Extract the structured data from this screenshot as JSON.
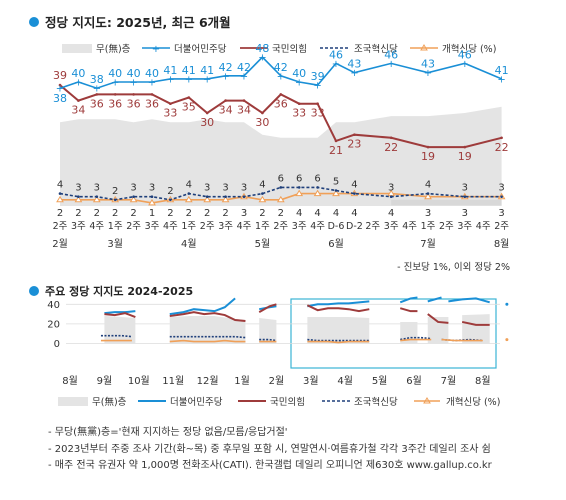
{
  "colors": {
    "dem": "#1a8fd6",
    "ppp": "#9e3b3b",
    "rebuild": "#1f3f7a",
    "reform": "#f0a058",
    "none_fill": "#e4e4e4",
    "frame": "#3bb4d4",
    "bullet": "#1a8fd6"
  },
  "legend": {
    "none": "무(無)층",
    "dem": "더불어민주당",
    "ppp": "국민의힘",
    "rebuild": "조국혁신당",
    "reform": "개혁신당 (%)"
  },
  "legend2": {
    "none": "무(無)층",
    "dem": "더불어민주당",
    "ppp": "국민의힘",
    "rebuild": "조국혁신당",
    "reform": "개혁신당 (%)"
  },
  "chart_data": [
    {
      "type": "line",
      "title": "정당 지지도: 2025년, 최근 6개월",
      "x_week_labels": [
        "2주",
        "3주",
        "4주",
        "1주",
        "2주",
        "3주",
        "4주",
        "1주",
        "2주",
        "3주",
        "4주",
        "1주",
        "2주",
        "3주",
        "4주",
        "D-6",
        "D-2",
        "2주",
        "3주",
        "4주",
        "1주",
        "2주",
        "3주",
        "4주",
        "2주"
      ],
      "month_labels": [
        {
          "label": "2월",
          "at_index": 0
        },
        {
          "label": "3월",
          "at_index": 3
        },
        {
          "label": "4월",
          "at_index": 7
        },
        {
          "label": "5월",
          "at_index": 11
        },
        {
          "label": "6월",
          "at_index": 15
        },
        {
          "label": "7월",
          "at_index": 20
        },
        {
          "label": "8월",
          "at_index": 24
        }
      ],
      "series": [
        {
          "name": "더불어민주당",
          "key": "dem",
          "values": [
            38,
            40,
            38,
            40,
            40,
            40,
            41,
            41,
            41,
            42,
            42,
            48,
            42,
            40,
            39,
            46,
            43,
            46,
            43,
            46,
            41
          ]
        },
        {
          "name": "국민의힘",
          "key": "ppp",
          "values": [
            39,
            34,
            36,
            36,
            36,
            36,
            33,
            35,
            30,
            34,
            34,
            30,
            36,
            33,
            33,
            21,
            23,
            22,
            19,
            19,
            22
          ]
        },
        {
          "name": "조국혁신당",
          "key": "rebuild",
          "values": [
            4,
            3,
            3,
            2,
            3,
            3,
            2,
            4,
            3,
            3,
            3,
            4,
            6,
            6,
            6,
            5,
            4,
            3,
            4,
            3,
            3
          ]
        },
        {
          "name": "개혁신당 (%)",
          "key": "reform",
          "values": [
            2,
            2,
            2,
            2,
            2,
            1,
            2,
            2,
            2,
            2,
            3,
            2,
            2,
            4,
            4,
            4,
            4,
            4,
            3,
            3,
            3
          ]
        },
        {
          "name": "무(無)층",
          "key": "none",
          "type": "area",
          "values": [
            27,
            28,
            28,
            28,
            27,
            28,
            27,
            27,
            28,
            27,
            27,
            23,
            22,
            22,
            22,
            27,
            27,
            29,
            29,
            30,
            32
          ]
        }
      ],
      "point_week_index": [
        0,
        1,
        2,
        3,
        4,
        5,
        6,
        7,
        8,
        9,
        10,
        11,
        12,
        13,
        14,
        15,
        16,
        18,
        20,
        22,
        24
      ],
      "ylim": [
        0,
        55
      ],
      "footnote": "- 진보당 1%, 이외 정당 2%"
    },
    {
      "type": "line",
      "title": "주요 정당 지지도 2024-2025",
      "x_month_labels": [
        "8월",
        "9월",
        "10월",
        "11월",
        "12월",
        "1월",
        "2월",
        "3월",
        "4월",
        "5월",
        "6월",
        "7월",
        "8월"
      ],
      "y_ticks": [
        0,
        20,
        40
      ],
      "ylim": [
        0,
        50
      ],
      "highlight_months": [
        "3월",
        "8월"
      ],
      "series": [
        {
          "name": "더불어민주당",
          "key": "dem",
          "segments": [
            [
              [
                1.0,
                31
              ],
              [
                1.3,
                32
              ],
              [
                1.6,
                32
              ],
              [
                1.9,
                33
              ]
            ],
            [
              [
                2.9,
                30
              ],
              [
                3.3,
                32
              ],
              [
                3.6,
                35
              ],
              [
                3.9,
                34
              ],
              [
                4.2,
                33
              ],
              [
                4.5,
                37
              ],
              [
                4.8,
                46
              ]
            ],
            [
              [
                5.5,
                35
              ],
              [
                5.8,
                37
              ],
              [
                6.0,
                38
              ]
            ],
            [
              [
                6.9,
                38
              ],
              [
                7.2,
                40
              ],
              [
                7.5,
                40
              ],
              [
                7.8,
                41
              ],
              [
                8.1,
                41
              ],
              [
                8.4,
                42
              ],
              [
                8.7,
                43
              ]
            ],
            [
              [
                9.6,
                42
              ],
              [
                9.9,
                46
              ],
              [
                10.1,
                47
              ]
            ],
            [
              [
                10.4,
                43
              ],
              [
                10.8,
                47
              ]
            ],
            [
              [
                11.0,
                43
              ],
              [
                11.4,
                45
              ],
              [
                11.8,
                46
              ],
              [
                12.2,
                42
              ]
            ],
            [
              [
                12.7,
                40
              ]
            ]
          ]
        },
        {
          "name": "국민의힘",
          "key": "ppp",
          "segments": [
            [
              [
                1.0,
                30
              ],
              [
                1.3,
                29
              ],
              [
                1.6,
                31
              ],
              [
                1.9,
                27
              ]
            ],
            [
              [
                2.9,
                28
              ],
              [
                3.3,
                30
              ],
              [
                3.6,
                32
              ],
              [
                3.9,
                30
              ],
              [
                4.2,
                31
              ],
              [
                4.5,
                29
              ],
              [
                4.8,
                24
              ],
              [
                5.1,
                23
              ]
            ],
            [
              [
                5.5,
                32
              ],
              [
                5.8,
                38
              ],
              [
                6.0,
                40
              ]
            ],
            [
              [
                6.9,
                39
              ],
              [
                7.2,
                34
              ],
              [
                7.5,
                36
              ],
              [
                7.8,
                36
              ],
              [
                8.1,
                35
              ],
              [
                8.4,
                33
              ],
              [
                8.7,
                35
              ]
            ],
            [
              [
                9.6,
                36
              ],
              [
                9.9,
                33
              ],
              [
                10.1,
                33
              ]
            ],
            [
              [
                10.4,
                30
              ],
              [
                10.7,
                22
              ],
              [
                11.0,
                21
              ]
            ],
            [
              [
                11.4,
                22
              ],
              [
                11.8,
                19
              ],
              [
                12.2,
                19
              ]
            ]
          ]
        },
        {
          "name": "조국혁신당",
          "key": "rebuild",
          "segments": [
            [
              [
                0.9,
                8
              ],
              [
                1.2,
                8
              ],
              [
                1.5,
                8
              ],
              [
                1.8,
                7
              ]
            ],
            [
              [
                2.9,
                7
              ],
              [
                3.3,
                7
              ],
              [
                3.6,
                7
              ],
              [
                3.9,
                7
              ],
              [
                4.2,
                7
              ],
              [
                4.5,
                7
              ],
              [
                4.8,
                7
              ],
              [
                5.1,
                6
              ]
            ],
            [
              [
                5.5,
                4
              ],
              [
                5.8,
                4
              ],
              [
                6.0,
                3
              ]
            ],
            [
              [
                6.9,
                4
              ],
              [
                7.2,
                3
              ],
              [
                7.5,
                3
              ],
              [
                7.8,
                3
              ],
              [
                8.1,
                3
              ],
              [
                8.4,
                3
              ],
              [
                8.7,
                3
              ]
            ],
            [
              [
                9.6,
                4
              ],
              [
                9.9,
                6
              ],
              [
                10.2,
                6
              ],
              [
                10.5,
                5
              ]
            ],
            [
              [
                10.8,
                4
              ],
              [
                11.2,
                3
              ],
              [
                11.6,
                4
              ],
              [
                12.0,
                3
              ]
            ]
          ]
        },
        {
          "name": "개혁신당 (%)",
          "key": "reform",
          "segments": [
            [
              [
                0.9,
                3
              ],
              [
                1.2,
                3
              ],
              [
                1.5,
                3
              ],
              [
                1.8,
                3
              ]
            ],
            [
              [
                2.9,
                2
              ],
              [
                3.3,
                3
              ],
              [
                3.6,
                2
              ],
              [
                3.9,
                2
              ],
              [
                4.2,
                2
              ],
              [
                4.5,
                3
              ],
              [
                4.8,
                2
              ],
              [
                5.1,
                2
              ]
            ],
            [
              [
                5.5,
                2
              ],
              [
                5.8,
                2
              ],
              [
                6.0,
                2
              ]
            ],
            [
              [
                6.9,
                2
              ],
              [
                7.2,
                2
              ],
              [
                7.5,
                2
              ],
              [
                7.8,
                1
              ],
              [
                8.1,
                2
              ],
              [
                8.4,
                2
              ],
              [
                8.7,
                2
              ]
            ],
            [
              [
                9.6,
                3
              ],
              [
                9.9,
                4
              ],
              [
                10.2,
                4
              ],
              [
                10.5,
                4
              ]
            ],
            [
              [
                10.8,
                4
              ],
              [
                11.2,
                3
              ],
              [
                11.6,
                3
              ],
              [
                12.0,
                3
              ]
            ],
            [
              [
                12.7,
                4
              ]
            ]
          ]
        },
        {
          "name": "무(無)층",
          "key": "none",
          "type": "area",
          "segments": [
            [
              [
                1.0,
                28
              ],
              [
                1.5,
                27
              ],
              [
                1.9,
                26
              ]
            ],
            [
              [
                2.9,
                27
              ],
              [
                3.5,
                28
              ],
              [
                4.2,
                28
              ],
              [
                4.8,
                25
              ],
              [
                5.1,
                24
              ]
            ],
            [
              [
                5.5,
                26
              ],
              [
                6.0,
                24
              ]
            ],
            [
              [
                6.9,
                27
              ],
              [
                7.5,
                27
              ],
              [
                8.1,
                27
              ],
              [
                8.7,
                26
              ]
            ],
            [
              [
                9.6,
                22
              ],
              [
                10.1,
                22
              ]
            ],
            [
              [
                10.4,
                27
              ],
              [
                11.0,
                27
              ]
            ],
            [
              [
                11.4,
                29
              ],
              [
                12.2,
                30
              ]
            ]
          ]
        }
      ]
    }
  ],
  "notes": [
    "- 무당(無黨)층='현재 지지하는 정당 없음/모름/응답거절'",
    "- 2023년부터 주중 조사 기간(화~목) 중 후무일 포함 시, 연말연시·여름휴가철 각각 3주간 데일리 조사 쉼",
    "- 매주 전국 유권자 약 1,000명 전화조사(CATI). 한국갤럽 데일리 오피니언 제630호 www.gallup.co.kr"
  ]
}
